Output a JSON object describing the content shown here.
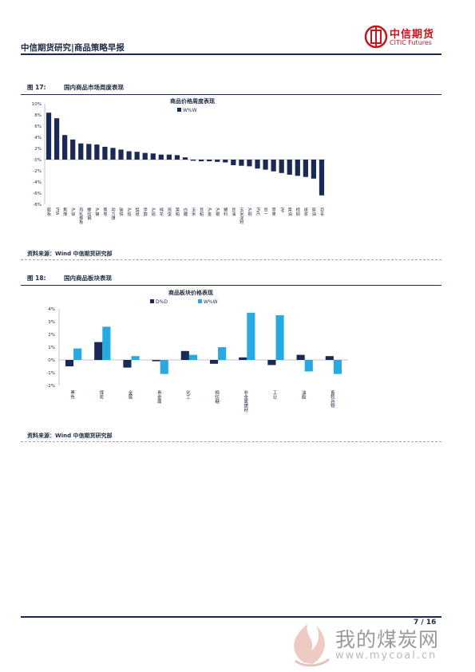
{
  "header": {
    "title": "中信期货研究|商品策略早报",
    "logo_cn": "中信期货",
    "logo_en": "CITIC Futures"
  },
  "figure17": {
    "num": "图 17:",
    "title": "国内商品市场周度表现",
    "source": "资料来源：Wind  中信期货研究部",
    "chart_data": {
      "type": "bar",
      "title": "商品价格周度表现",
      "legend": [
        "W%W"
      ],
      "ylim": [
        -8,
        10
      ],
      "yticks": [
        "10%",
        "8%",
        "6%",
        "4%",
        "2%",
        "0%",
        "-2%",
        "-4%",
        "-6%",
        "-8%"
      ],
      "categories": [
        "胶板",
        "PTA",
        "焦煤",
        "沪锌",
        "热轧卷板",
        "螺纹钢",
        "沪镍",
        "焦炭",
        "动力煤",
        "硅铁",
        "沪铅",
        "锰硅",
        "甲醇",
        "沪铝",
        "棉花",
        "鸡蛋",
        "菜粕",
        "白糖",
        "玉米",
        "豆粕",
        "沪金",
        "沪银",
        "塑料",
        "豆油",
        "玉米淀粉",
        "沪铜",
        "PVC",
        "豆一",
        "苹果",
        "PP",
        "菜油",
        "棕榈",
        "纸浆",
        "原油",
        "沥青"
      ],
      "series": [
        {
          "name": "W%W",
          "values": [
            8.4,
            7.4,
            4.4,
            3.6,
            2.9,
            2.8,
            2.7,
            2.3,
            2.1,
            1.8,
            1.5,
            1.4,
            1.2,
            1.1,
            0.9,
            0.9,
            0.8,
            0.4,
            -0.2,
            -0.3,
            -0.3,
            -0.4,
            -0.5,
            -1.0,
            -1.1,
            -1.2,
            -1.6,
            -1.8,
            -2.1,
            -2.4,
            -2.7,
            -2.9,
            -3.1,
            -3.4,
            -6.4
          ]
        }
      ]
    }
  },
  "figure18": {
    "num": "图 18:",
    "title": "国内商品板块表现",
    "source": "资料来源：Wind  中信期货研究部",
    "chart_data": {
      "type": "bar",
      "title": "商品板块价格表现",
      "ylim": [
        -2,
        4
      ],
      "yticks": [
        "4%",
        "3%",
        "2%",
        "1%",
        "0%",
        "-1%",
        "-2%"
      ],
      "categories": [
        "黑色",
        "煤炭",
        "金属",
        "贵金属",
        "化工",
        "棉纺糖",
        "非金属建材",
        "工业",
        "油脂",
        "畜牧谷物"
      ],
      "series": [
        {
          "name": "D%D",
          "color": "#1a2a55",
          "values": [
            -0.5,
            1.4,
            -0.6,
            -0.1,
            0.7,
            -0.3,
            0.2,
            -0.4,
            0.4,
            0.3
          ]
        },
        {
          "name": "W%W",
          "color": "#27aae1",
          "values": [
            0.9,
            2.6,
            0.3,
            -1.1,
            0.4,
            1.0,
            3.7,
            3.5,
            -0.9,
            -1.1
          ]
        }
      ]
    }
  },
  "footer": {
    "page": "7 / 16",
    "watermark_cn": "我的煤炭网",
    "watermark_url": "www.mycoal.cn"
  }
}
